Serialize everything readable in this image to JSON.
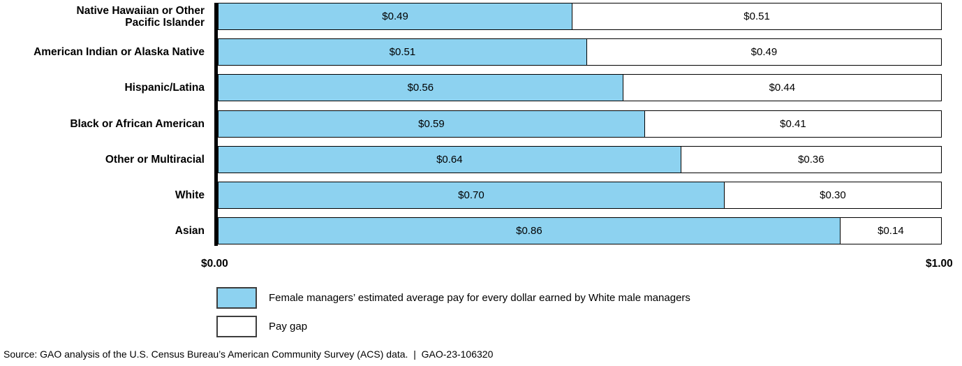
{
  "chart_data": {
    "type": "bar",
    "orientation": "horizontal",
    "stacked": true,
    "grid": false,
    "categories": [
      "Native Hawaiian or Other\nPacific Islander",
      "American Indian or Alaska Native",
      "Hispanic/Latina",
      "Black or African American",
      "Other or Multiracial",
      "White",
      "Asian"
    ],
    "series": [
      {
        "name": "Female managers’ estimated average pay for every dollar earned by White male managers",
        "values": [
          0.49,
          0.51,
          0.56,
          0.59,
          0.64,
          0.7,
          0.86
        ],
        "display": [
          "$0.49",
          "$0.51",
          "$0.56",
          "$0.59",
          "$0.64",
          "$0.70",
          "$0.86"
        ],
        "color": "#8DD2F0"
      },
      {
        "name": "Pay gap",
        "values": [
          0.51,
          0.49,
          0.44,
          0.41,
          0.36,
          0.3,
          0.14
        ],
        "display": [
          "$0.51",
          "$0.49",
          "$0.44",
          "$0.41",
          "$0.36",
          "$0.30",
          "$0.14"
        ],
        "color": "#FFFFFF"
      }
    ],
    "xlim": [
      0,
      1
    ],
    "x_tick_labels": [
      "$0.00",
      "$1.00"
    ],
    "legend_position": "bottom-left"
  },
  "legend": {
    "items": [
      {
        "label": "Female managers’ estimated average pay for every dollar earned by White male managers",
        "color": "#8DD2F0"
      },
      {
        "label": "Pay gap",
        "color": "#FFFFFF"
      }
    ]
  },
  "source_line": "Source: GAO analysis of the U.S. Census Bureau’s American Community Survey (ACS) data.  |  GAO-23-106320",
  "colors": {
    "bar_fill": "#8DD2F0",
    "gap_fill": "#FFFFFF",
    "bar_border": "#000000",
    "axis_line": "#000000",
    "legend_border": "#3d3d3d"
  }
}
